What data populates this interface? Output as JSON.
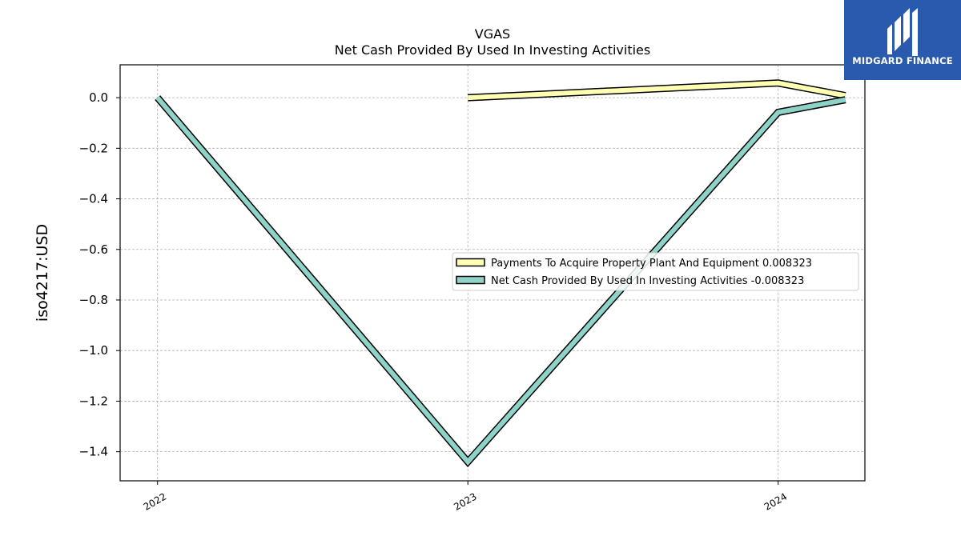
{
  "chart_data": {
    "type": "line",
    "title": "VGAS",
    "subtitle": "Net Cash Provided By Used In Investing Activities",
    "ylabel": "iso4217:USD",
    "xlabel": "",
    "xlim": [
      "2021-11-18",
      "2024-04-12"
    ],
    "ylim": [
      -1.515,
      0.13
    ],
    "x_ticks": [
      "2022",
      "2023",
      "2024"
    ],
    "y_ticks": [
      0.0,
      -0.2,
      -0.4,
      -0.6,
      -0.8,
      -1.0,
      -1.2,
      -1.4
    ],
    "y_tick_labels": [
      "0.0",
      "−0.2",
      "−0.4",
      "−0.6",
      "−0.8",
      "−1.0",
      "−1.2",
      "−1.4"
    ],
    "grid": true,
    "legend_position": "center-right",
    "series": [
      {
        "name": "Payments To Acquire Property Plant And Equipment",
        "legend_label": "Payments To Acquire Property Plant And Equipment  0.008323",
        "color": "#ffffb3",
        "points": [
          {
            "x": "2023-01-01",
            "y": 0.0
          },
          {
            "x": "2024-01-01",
            "y": 0.058
          },
          {
            "x": "2024-03-20",
            "y": 0.008323
          }
        ]
      },
      {
        "name": "Net Cash Provided By Used In Investing Activities",
        "legend_label": "Net Cash Provided By Used In Investing Activities  -0.008323",
        "color": "#8dd3c7",
        "points": [
          {
            "x": "2022-01-01",
            "y": 0.0
          },
          {
            "x": "2023-01-01",
            "y": -1.44
          },
          {
            "x": "2024-01-01",
            "y": -0.058
          },
          {
            "x": "2024-03-20",
            "y": -0.008323
          }
        ]
      }
    ]
  },
  "logo": {
    "text": "MIDGARD FINANCE",
    "bg_color": "#2a5aad"
  }
}
